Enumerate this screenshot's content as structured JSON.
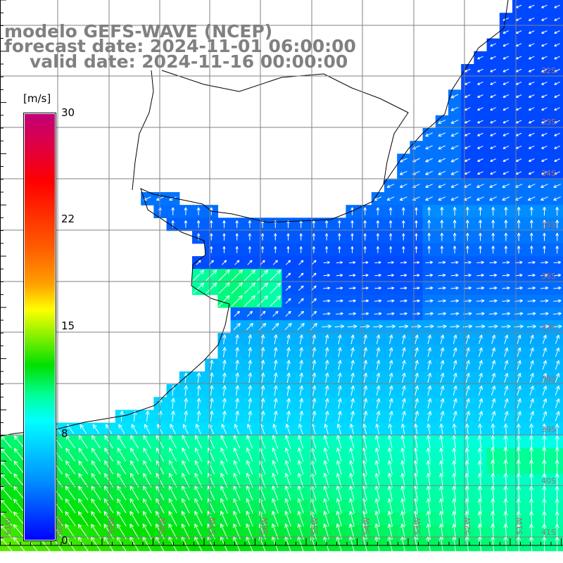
{
  "title": {
    "model": "modelo GEFS-WAVE (NCEP)",
    "forecast": "forecast date: 2024-11-01 06:00:00",
    "valid": "valid date: 2024-11-16 00:00:00"
  },
  "colorbar": {
    "units": "[m/s]",
    "labels": [
      "30",
      "22",
      "15",
      "8",
      "0"
    ],
    "range": [
      0,
      30
    ]
  },
  "axes": {
    "longitudes": [
      "61W",
      "60W",
      "59W",
      "58W",
      "57W",
      "56W",
      "55W",
      "54W",
      "53W",
      "52W",
      "51W"
    ],
    "latitudes": [
      "32S",
      "33S",
      "34S",
      "35S",
      "36S",
      "37S",
      "38S",
      "39S",
      "40S",
      "41S"
    ]
  },
  "colors": {
    "land": "#ffffff",
    "coast": "#000000",
    "grid": "#808080",
    "label": "#a07070",
    "arrow": "#ffffff"
  }
}
